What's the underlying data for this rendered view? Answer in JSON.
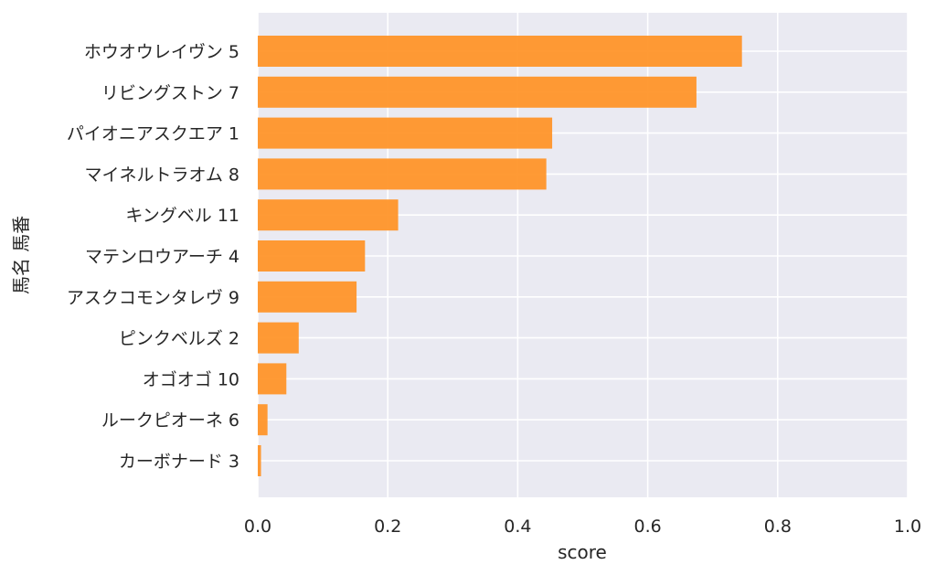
{
  "chart_data": {
    "type": "bar",
    "orientation": "horizontal",
    "title": "",
    "xlabel": "score",
    "ylabel": "馬名 馬番",
    "xlim": [
      0.0,
      1.0
    ],
    "xticks": [
      "0.0",
      "0.2",
      "0.4",
      "0.6",
      "0.8",
      "1.0"
    ],
    "grid": true,
    "legend": "none",
    "bar_color": "#ff9124",
    "background_color": "#eaeaf2",
    "categories": [
      "ホウオウレイヴン 5",
      "リビングストン 7",
      "パイオニアスクエア 1",
      "マイネルトラオム 8",
      "キングベル 11",
      "マテンロウアーチ 4",
      "アスクコモンタレヴ 9",
      "ピンクベルズ 2",
      "オゴオゴ 10",
      "ルークピオーネ 6",
      "カーボナード 3"
    ],
    "values": [
      0.745,
      0.675,
      0.453,
      0.444,
      0.216,
      0.165,
      0.152,
      0.063,
      0.044,
      0.015,
      0.005
    ]
  }
}
